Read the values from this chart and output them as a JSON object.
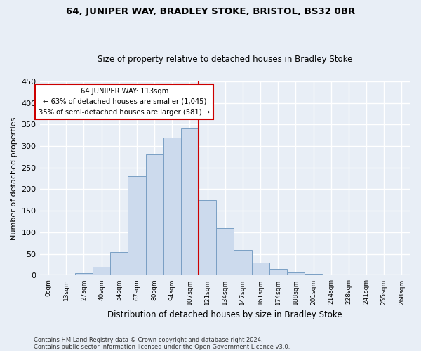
{
  "title1": "64, JUNIPER WAY, BRADLEY STOKE, BRISTOL, BS32 0BR",
  "title2": "Size of property relative to detached houses in Bradley Stoke",
  "xlabel": "Distribution of detached houses by size in Bradley Stoke",
  "ylabel": "Number of detached properties",
  "bar_labels": [
    "0sqm",
    "13sqm",
    "27sqm",
    "40sqm",
    "54sqm",
    "67sqm",
    "80sqm",
    "94sqm",
    "107sqm",
    "121sqm",
    "134sqm",
    "147sqm",
    "161sqm",
    "174sqm",
    "188sqm",
    "201sqm",
    "214sqm",
    "228sqm",
    "241sqm",
    "255sqm",
    "268sqm"
  ],
  "bar_values": [
    0,
    0,
    5,
    20,
    55,
    230,
    280,
    320,
    340,
    175,
    110,
    60,
    30,
    15,
    7,
    3,
    0,
    0,
    0,
    0,
    0
  ],
  "bar_color": "#ccdaed",
  "bar_edge_color": "#7a9fc4",
  "property_line_x": 8.5,
  "annotation_text": "64 JUNIPER WAY: 113sqm\n← 63% of detached houses are smaller (1,045)\n35% of semi-detached houses are larger (581) →",
  "annotation_box_color": "#ffffff",
  "annotation_box_edge": "#cc0000",
  "vline_color": "#cc0000",
  "footnote1": "Contains HM Land Registry data © Crown copyright and database right 2024.",
  "footnote2": "Contains public sector information licensed under the Open Government Licence v3.0.",
  "ylim": [
    0,
    450
  ],
  "yticks": [
    0,
    50,
    100,
    150,
    200,
    250,
    300,
    350,
    400,
    450
  ],
  "bg_color": "#e8eef6",
  "grid_color": "#ffffff",
  "title1_fontsize": 9.5,
  "title2_fontsize": 8.5,
  "ylabel_fontsize": 8,
  "xlabel_fontsize": 8.5
}
